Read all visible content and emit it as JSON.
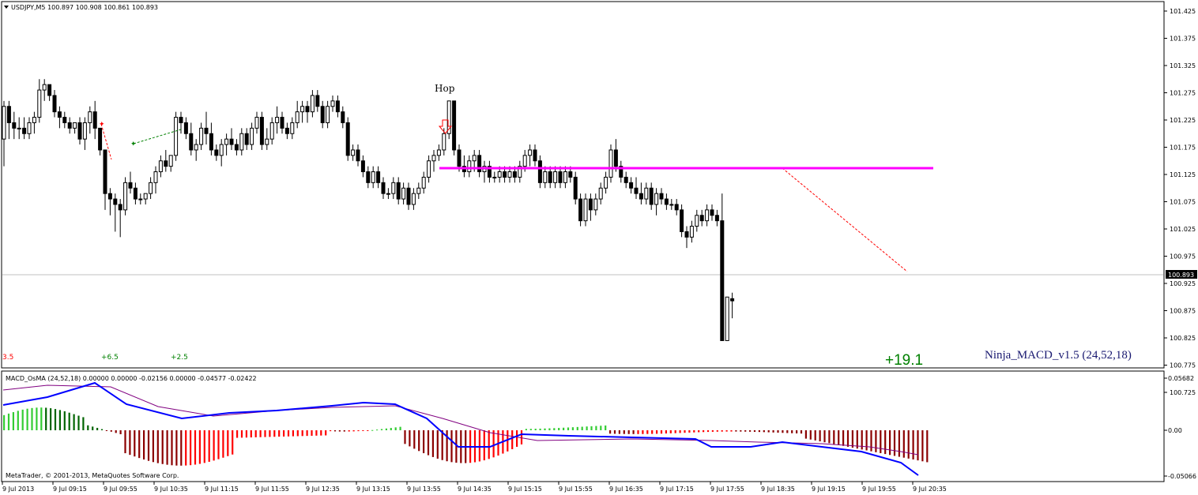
{
  "colors": {
    "background": "#ffffff",
    "frame": "#000000",
    "bull_candle": "#ffffff",
    "bear_candle": "#000000",
    "level_line": "#ff00ff",
    "bid_line": "#c0c0c0",
    "trade_line": "#ff0000",
    "trade_line_green": "#008000",
    "profit_label": "#008000",
    "indicator_label": "#191970",
    "macd_line": "#0000ff",
    "signal_line": "#800080",
    "hist_green_bright": "#33cc33",
    "hist_green_dark": "#006400",
    "hist_red_bright": "#ff0000",
    "hist_red_dark": "#8b0000",
    "price_box_bg": "#000000",
    "price_box_text": "#ffffff"
  },
  "main_chart": {
    "symbol_header": "USDJPY,M5  100.897 100.908 100.861 100.893",
    "header_icon": "triangle-down-icon",
    "annotation_text": "Hop",
    "arrow_icon": "down-arrow-icon",
    "indicator_label": "Ninja_MACD_v1.5 (24,52,18)",
    "profit_label": "+19.1",
    "trade_labels": [
      "3.5",
      "+6.5",
      "+2.5"
    ],
    "current_price": "100.893",
    "price_axis": [
      "101.425",
      "101.375",
      "101.325",
      "101.275",
      "101.225",
      "101.175",
      "101.125",
      "101.075",
      "101.025",
      "100.975",
      "100.925",
      "100.875",
      "100.825",
      "100.775",
      "100.725"
    ]
  },
  "sub_chart": {
    "header": "MACD_OsMA (24,52,18) 0.00000 0.00000 -0.02156 0.00000 -0.04577 -0.02422",
    "axis": [
      "0.05682",
      "0.00",
      "-0.05066"
    ],
    "copyright": "MetaTrader, © 2001-2013, MetaQuotes Software Corp."
  },
  "time_axis": [
    "9 Jul 2013",
    "9 Jul 09:15",
    "9 Jul 09:55",
    "9 Jul 10:35",
    "9 Jul 11:15",
    "9 Jul 11:55",
    "9 Jul 12:35",
    "9 Jul 13:15",
    "9 Jul 13:55",
    "9 Jul 14:35",
    "9 Jul 15:15",
    "9 Jul 15:55",
    "9 Jul 16:35",
    "9 Jul 17:15",
    "9 Jul 17:55",
    "9 Jul 18:35",
    "9 Jul 19:15",
    "9 Jul 19:55",
    "9 Jul 20:35"
  ],
  "chart_data": {
    "type": "candlestick",
    "symbol": "USDJPY",
    "timeframe": "M5",
    "ohlc_last": {
      "open": 100.897,
      "high": 100.908,
      "low": 100.861,
      "close": 100.893
    },
    "ylim": [
      100.71,
      101.44
    ],
    "level_line": 101.087,
    "candles_ohlc": [
      [
        101.19,
        101.26,
        101.14,
        101.25
      ],
      [
        101.25,
        101.26,
        101.19,
        101.22
      ],
      [
        101.22,
        101.24,
        101.19,
        101.21
      ],
      [
        101.21,
        101.23,
        101.19,
        101.21
      ],
      [
        101.21,
        101.23,
        101.19,
        101.2
      ],
      [
        101.2,
        101.23,
        101.19,
        101.22
      ],
      [
        101.22,
        101.24,
        101.2,
        101.23
      ],
      [
        101.23,
        101.3,
        101.22,
        101.28
      ],
      [
        101.28,
        101.3,
        101.26,
        101.29
      ],
      [
        101.29,
        101.29,
        101.26,
        101.27
      ],
      [
        101.27,
        101.28,
        101.23,
        101.24
      ],
      [
        101.24,
        101.25,
        101.21,
        101.23
      ],
      [
        101.23,
        101.24,
        101.21,
        101.22
      ],
      [
        101.22,
        101.23,
        101.2,
        101.21
      ],
      [
        101.21,
        101.22,
        101.2,
        101.22
      ],
      [
        101.22,
        101.23,
        101.18,
        101.19
      ],
      [
        101.19,
        101.23,
        101.17,
        101.22
      ],
      [
        101.22,
        101.25,
        101.2,
        101.24
      ],
      [
        101.24,
        101.26,
        101.19,
        101.21
      ],
      [
        101.21,
        101.21,
        101.16,
        101.17
      ],
      [
        101.17,
        101.17,
        101.06,
        101.09
      ],
      [
        101.09,
        101.1,
        101.05,
        101.08
      ],
      [
        101.08,
        101.09,
        101.02,
        101.07
      ],
      [
        101.07,
        101.08,
        101.01,
        101.06
      ],
      [
        101.06,
        101.12,
        101.05,
        101.11
      ],
      [
        101.11,
        101.13,
        101.09,
        101.1
      ],
      [
        101.1,
        101.11,
        101.07,
        101.08
      ],
      [
        101.08,
        101.09,
        101.07,
        101.08
      ],
      [
        101.08,
        101.09,
        101.07,
        101.09
      ],
      [
        101.09,
        101.12,
        101.08,
        101.11
      ],
      [
        101.11,
        101.14,
        101.09,
        101.13
      ],
      [
        101.13,
        101.16,
        101.12,
        101.15
      ],
      [
        101.15,
        101.17,
        101.13,
        101.14
      ],
      [
        101.14,
        101.16,
        101.13,
        101.16
      ],
      [
        101.16,
        101.24,
        101.15,
        101.23
      ],
      [
        101.23,
        101.24,
        101.2,
        101.22
      ],
      [
        101.22,
        101.23,
        101.19,
        101.2
      ],
      [
        101.2,
        101.22,
        101.16,
        101.17
      ],
      [
        101.17,
        101.19,
        101.15,
        101.18
      ],
      [
        101.18,
        101.22,
        101.17,
        101.21
      ],
      [
        101.21,
        101.24,
        101.18,
        101.2
      ],
      [
        101.2,
        101.22,
        101.16,
        101.17
      ],
      [
        101.17,
        101.18,
        101.15,
        101.16
      ],
      [
        101.16,
        101.19,
        101.14,
        101.18
      ],
      [
        101.18,
        101.2,
        101.16,
        101.19
      ],
      [
        101.19,
        101.21,
        101.17,
        101.18
      ],
      [
        101.18,
        101.19,
        101.16,
        101.17
      ],
      [
        101.17,
        101.21,
        101.16,
        101.2
      ],
      [
        101.2,
        101.21,
        101.17,
        101.18
      ],
      [
        101.18,
        101.22,
        101.17,
        101.21
      ],
      [
        101.21,
        101.24,
        101.2,
        101.23
      ],
      [
        101.23,
        101.24,
        101.17,
        101.18
      ],
      [
        101.18,
        101.21,
        101.17,
        101.19
      ],
      [
        101.19,
        101.23,
        101.18,
        101.22
      ],
      [
        101.22,
        101.25,
        101.2,
        101.23
      ],
      [
        101.23,
        101.24,
        101.2,
        101.21
      ],
      [
        101.21,
        101.22,
        101.19,
        101.2
      ],
      [
        101.2,
        101.23,
        101.19,
        101.22
      ],
      [
        101.22,
        101.26,
        101.21,
        101.24
      ],
      [
        101.24,
        101.26,
        101.22,
        101.25
      ],
      [
        101.25,
        101.26,
        101.22,
        101.24
      ],
      [
        101.24,
        101.28,
        101.23,
        101.27
      ],
      [
        101.27,
        101.28,
        101.24,
        101.25
      ],
      [
        101.25,
        101.26,
        101.21,
        101.22
      ],
      [
        101.22,
        101.26,
        101.21,
        101.25
      ],
      [
        101.25,
        101.27,
        101.24,
        101.26
      ],
      [
        101.26,
        101.27,
        101.23,
        101.24
      ],
      [
        101.24,
        101.25,
        101.21,
        101.22
      ],
      [
        101.22,
        101.23,
        101.15,
        101.16
      ],
      [
        101.16,
        101.18,
        101.15,
        101.17
      ],
      [
        101.17,
        101.18,
        101.14,
        101.15
      ],
      [
        101.15,
        101.16,
        101.12,
        101.13
      ],
      [
        101.13,
        101.14,
        101.1,
        101.11
      ],
      [
        101.11,
        101.14,
        101.1,
        101.13
      ],
      [
        101.13,
        101.14,
        101.1,
        101.11
      ],
      [
        101.11,
        101.12,
        101.08,
        101.09
      ],
      [
        101.09,
        101.1,
        101.08,
        101.09
      ],
      [
        101.09,
        101.12,
        101.08,
        101.11
      ],
      [
        101.11,
        101.12,
        101.07,
        101.08
      ],
      [
        101.08,
        101.11,
        101.07,
        101.1
      ],
      [
        101.1,
        101.11,
        101.06,
        101.07
      ],
      [
        101.07,
        101.1,
        101.06,
        101.09
      ],
      [
        101.09,
        101.11,
        101.08,
        101.1
      ],
      [
        101.1,
        101.13,
        101.09,
        101.12
      ],
      [
        101.12,
        101.16,
        101.11,
        101.15
      ],
      [
        101.15,
        101.17,
        101.13,
        101.16
      ],
      [
        101.16,
        101.18,
        101.15,
        101.17
      ],
      [
        101.17,
        101.21,
        101.16,
        101.2
      ],
      [
        101.2,
        101.26,
        101.19,
        101.26
      ],
      [
        101.26,
        101.26,
        101.16,
        101.17
      ],
      [
        101.17,
        101.18,
        101.13,
        101.14
      ],
      [
        101.14,
        101.16,
        101.12,
        101.13
      ],
      [
        101.13,
        101.16,
        101.12,
        101.15
      ],
      [
        101.15,
        101.17,
        101.13,
        101.16
      ],
      [
        101.16,
        101.17,
        101.12,
        101.13
      ],
      [
        101.13,
        101.15,
        101.11,
        101.14
      ],
      [
        101.14,
        101.15,
        101.11,
        101.12
      ],
      [
        101.12,
        101.13,
        101.11,
        101.12
      ],
      [
        101.12,
        101.14,
        101.11,
        101.13
      ],
      [
        101.13,
        101.14,
        101.11,
        101.12
      ],
      [
        101.12,
        101.14,
        101.11,
        101.13
      ],
      [
        101.13,
        101.14,
        101.11,
        101.12
      ],
      [
        101.12,
        101.15,
        101.11,
        101.14
      ],
      [
        101.14,
        101.17,
        101.13,
        101.16
      ],
      [
        101.16,
        101.18,
        101.14,
        101.17
      ],
      [
        101.17,
        101.18,
        101.14,
        101.15
      ],
      [
        101.15,
        101.16,
        101.1,
        101.11
      ],
      [
        101.11,
        101.14,
        101.1,
        101.13
      ],
      [
        101.13,
        101.14,
        101.1,
        101.11
      ],
      [
        101.11,
        101.14,
        101.1,
        101.13
      ],
      [
        101.13,
        101.14,
        101.1,
        101.11
      ],
      [
        101.11,
        101.14,
        101.1,
        101.13
      ],
      [
        101.13,
        101.14,
        101.11,
        101.12
      ],
      [
        101.12,
        101.13,
        101.07,
        101.08
      ],
      [
        101.08,
        101.09,
        101.03,
        101.04
      ],
      [
        101.04,
        101.09,
        101.03,
        101.08
      ],
      [
        101.08,
        101.09,
        101.04,
        101.06
      ],
      [
        101.06,
        101.09,
        101.05,
        101.08
      ],
      [
        101.08,
        101.11,
        101.07,
        101.1
      ],
      [
        101.1,
        101.13,
        101.09,
        101.12
      ],
      [
        101.12,
        101.18,
        101.11,
        101.17
      ],
      [
        101.17,
        101.19,
        101.13,
        101.14
      ],
      [
        101.14,
        101.15,
        101.11,
        101.12
      ],
      [
        101.12,
        101.13,
        101.1,
        101.11
      ],
      [
        101.11,
        101.12,
        101.09,
        101.1
      ],
      [
        101.1,
        101.12,
        101.08,
        101.09
      ],
      [
        101.09,
        101.11,
        101.07,
        101.08
      ],
      [
        101.08,
        101.11,
        101.07,
        101.1
      ],
      [
        101.1,
        101.11,
        101.06,
        101.07
      ],
      [
        101.07,
        101.1,
        101.05,
        101.09
      ],
      [
        101.09,
        101.1,
        101.07,
        101.08
      ],
      [
        101.08,
        101.09,
        101.06,
        101.07
      ],
      [
        101.07,
        101.08,
        101.06,
        101.07
      ],
      [
        101.07,
        101.08,
        101.05,
        101.06
      ],
      [
        101.06,
        101.07,
        101.01,
        101.02
      ],
      [
        101.02,
        101.03,
        100.99,
        101.01
      ],
      [
        101.01,
        101.04,
        101.0,
        101.03
      ],
      [
        101.03,
        101.06,
        101.02,
        101.05
      ],
      [
        101.05,
        101.06,
        101.03,
        101.04
      ],
      [
        101.04,
        101.07,
        101.03,
        101.06
      ],
      [
        101.06,
        101.07,
        101.04,
        101.05
      ],
      [
        101.05,
        101.06,
        101.03,
        101.04
      ],
      [
        101.04,
        101.09,
        100.82,
        100.82
      ],
      [
        100.82,
        100.9,
        100.82,
        100.9
      ],
      [
        100.897,
        100.908,
        100.861,
        100.893
      ]
    ]
  }
}
